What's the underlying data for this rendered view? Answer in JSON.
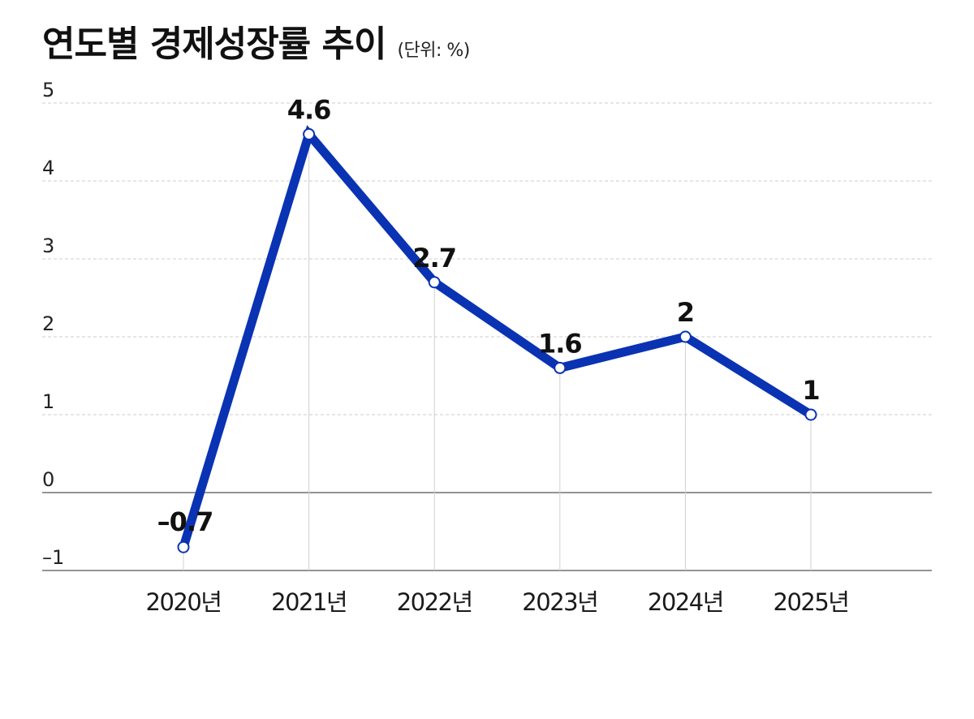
{
  "title": "연도별 경제성장률 추이",
  "unit_note": "(단위: %)",
  "chart_data": {
    "type": "line",
    "title": "연도별 경제성장률 추이",
    "subtitle": "(단위: %)",
    "categories": [
      "2020년",
      "2021년",
      "2022년",
      "2023년",
      "2024년",
      "2025년"
    ],
    "values": [
      -0.7,
      4.6,
      2.7,
      1.6,
      2,
      1
    ],
    "data_labels": [
      "–0.7",
      "4.6",
      "2.7",
      "1.6",
      "2",
      "1"
    ],
    "ylim": [
      -1,
      5
    ],
    "yticks": [
      5,
      4,
      3,
      2,
      1,
      0,
      -1
    ],
    "ytick_labels": [
      "5",
      "4",
      "3",
      "2",
      "1",
      "0",
      "–1"
    ],
    "xlabel": "",
    "ylabel": "",
    "grid": "horizontal dashed",
    "colors": {
      "line": "#0a33b3",
      "marker_fill": "#ffffff",
      "grid": "#cccccc",
      "zero_line": "#555555",
      "drop_line": "#d0d0d0",
      "text": "#111111"
    }
  }
}
